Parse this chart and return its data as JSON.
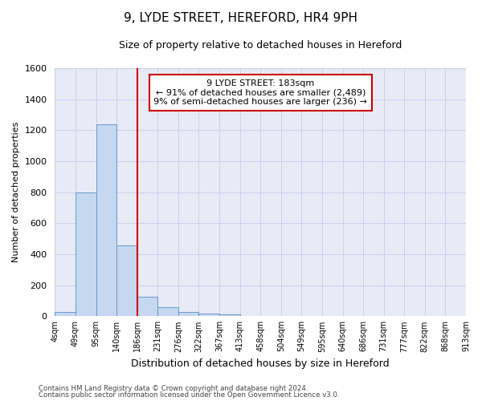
{
  "title": "9, LYDE STREET, HEREFORD, HR4 9PH",
  "subtitle": "Size of property relative to detached houses in Hereford",
  "xlabel": "Distribution of detached houses by size in Hereford",
  "ylabel": "Number of detached properties",
  "bar_values": [
    25,
    800,
    1240,
    455,
    125,
    60,
    28,
    18,
    12,
    0,
    0,
    0,
    0,
    0,
    0,
    0,
    0,
    0,
    0,
    0
  ],
  "bar_labels": [
    "4sqm",
    "49sqm",
    "95sqm",
    "140sqm",
    "186sqm",
    "231sqm",
    "276sqm",
    "322sqm",
    "367sqm",
    "413sqm",
    "458sqm",
    "504sqm",
    "549sqm",
    "595sqm",
    "640sqm",
    "686sqm",
    "731sqm",
    "777sqm",
    "822sqm",
    "868sqm",
    "913sqm"
  ],
  "bar_color": "#c5d8f0",
  "bar_edge_color": "#6699cc",
  "grid_color": "#c8cce8",
  "background_color": "#e8eaf6",
  "vline_x_bar_index": 4,
  "vline_color": "#cc0000",
  "annotation_text": "9 LYDE STREET: 183sqm\n← 91% of detached houses are smaller (2,489)\n9% of semi-detached houses are larger (236) →",
  "annotation_box_color": "#cc0000",
  "ylim": [
    0,
    1600
  ],
  "yticks": [
    0,
    200,
    400,
    600,
    800,
    1000,
    1200,
    1400,
    1600
  ],
  "footnote1": "Contains HM Land Registry data © Crown copyright and database right 2024.",
  "footnote2": "Contains public sector information licensed under the Open Government Licence v3.0.",
  "title_fontsize": 11,
  "subtitle_fontsize": 9,
  "xlabel_fontsize": 9,
  "ylabel_fontsize": 8
}
